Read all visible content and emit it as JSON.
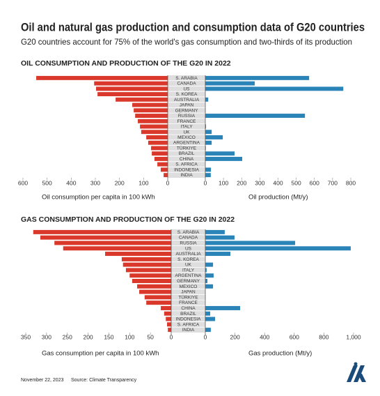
{
  "header": {
    "title": "Oil and natural gas production and consumption data of G20 countries",
    "subtitle": "G20 countries account for 75% of the world's gas consumption and two-thirds of its production"
  },
  "footer": {
    "date": "November 22, 2023",
    "source": "Source: Climate Transparency"
  },
  "chart_data": [
    {
      "type": "butterfly",
      "title": "OIL CONSUMPTION AND PRODUCTION OF THE G20 IN 2022",
      "categories": [
        "S. ARABIA",
        "CANADA",
        "US",
        "S. KOREA",
        "AUSTRALIA",
        "JAPAN",
        "GERMANY",
        "RUSSIA",
        "FRANCE",
        "ITALY",
        "UK",
        "MEXICO",
        "ARGENTINA",
        "TÜRKIYE",
        "BRAZIL",
        "CHINA",
        "S. AFRICA",
        "INDONESIA",
        "INDIA"
      ],
      "series": [
        {
          "name": "Oil consumption per capita in 100 kWh",
          "color": "#d9382a",
          "values": [
            545,
            305,
            297,
            291,
            216,
            147,
            141,
            135,
            124,
            115,
            110,
            89,
            81,
            69,
            66,
            55,
            43,
            29,
            17
          ],
          "xlim": [
            0,
            600
          ],
          "xticks": [
            600,
            500,
            400,
            300,
            200,
            100,
            0
          ]
        },
        {
          "name": "Oil production (Mt/y)",
          "color": "#2a84b8",
          "values": [
            571,
            272,
            759,
            0,
            16,
            0,
            1,
            548,
            0,
            4,
            35,
            96,
            35,
            3,
            161,
            203,
            0,
            31,
            30
          ],
          "xlim": [
            0,
            800
          ],
          "xticks": [
            0,
            100,
            200,
            300,
            400,
            500,
            600,
            700,
            800
          ]
        }
      ]
    },
    {
      "type": "butterfly",
      "title": "GAS CONSUMPTION AND PRODUCTION OF THE G20 IN 2022",
      "categories": [
        "S. ARABIA",
        "CANADA",
        "RUSSIA",
        "US",
        "AUSTRALIA",
        "S. KOREA",
        "UK",
        "ITALY",
        "ARGENTINA",
        "GERMANY",
        "MEXICO",
        "JAPAN",
        "TÜRKIYE",
        "FRANCE",
        "CHINA",
        "BRAZIL",
        "INDONESIA",
        "S. AFRICA",
        "INDIA"
      ],
      "series": [
        {
          "name": "Gas consumption per capita in 100 kWh",
          "color": "#d9382a",
          "values": [
            332,
            315,
            281,
            260,
            159,
            119,
            116,
            109,
            100,
            94,
            82,
            77,
            64,
            60,
            25,
            17,
            13,
            10,
            8
          ],
          "xlim": [
            0,
            350
          ],
          "xticks": [
            350,
            300,
            250,
            200,
            150,
            100,
            50,
            0
          ]
        },
        {
          "name": "Gas production (Mt/y)",
          "color": "#2a84b8",
          "values": [
            131,
            197,
            606,
            981,
            169,
            0,
            52,
            9,
            56,
            14,
            52,
            0,
            1,
            0,
            235,
            33,
            66,
            0,
            37
          ],
          "xlim": [
            0,
            1000
          ],
          "xticks": [
            0,
            200,
            400,
            600,
            800,
            {
              "value": 1000,
              "label": "1,000"
            }
          ]
        }
      ]
    }
  ]
}
